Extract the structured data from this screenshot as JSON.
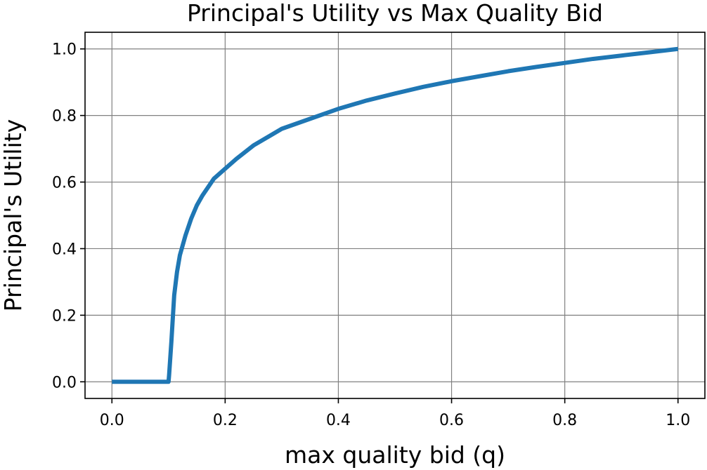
{
  "chart_data": {
    "type": "line",
    "title": "Principal's Utility vs Max Quality Bid",
    "xlabel": "max quality bid (q)",
    "ylabel": "Principal's Utility",
    "xlim": [
      -0.0475,
      1.0475
    ],
    "ylim": [
      -0.05,
      1.05
    ],
    "x_ticks": [
      0.0,
      0.2,
      0.4,
      0.6,
      0.8,
      1.0
    ],
    "x_tick_labels": [
      "0.0",
      "0.2",
      "0.4",
      "0.6",
      "0.8",
      "1.0"
    ],
    "y_ticks": [
      0.0,
      0.2,
      0.4,
      0.6,
      0.8,
      1.0
    ],
    "y_tick_labels": [
      "0.0",
      "0.2",
      "0.4",
      "0.6",
      "0.8",
      "1.0"
    ],
    "grid": true,
    "series": [
      {
        "color": "#1f77b4",
        "x": [
          0.0,
          0.02,
          0.04,
          0.06,
          0.08,
          0.1,
          0.101,
          0.105,
          0.11,
          0.115,
          0.12,
          0.13,
          0.14,
          0.15,
          0.16,
          0.18,
          0.2,
          0.22,
          0.25,
          0.28,
          0.3,
          0.35,
          0.4,
          0.45,
          0.5,
          0.55,
          0.6,
          0.65,
          0.7,
          0.75,
          0.8,
          0.85,
          0.9,
          0.95,
          1.0
        ],
        "y": [
          0.0,
          0.0,
          0.0,
          0.0,
          0.0,
          0.0,
          0.02,
          0.12,
          0.26,
          0.33,
          0.38,
          0.44,
          0.49,
          0.53,
          0.56,
          0.61,
          0.64,
          0.67,
          0.71,
          0.74,
          0.76,
          0.79,
          0.82,
          0.845,
          0.866,
          0.886,
          0.903,
          0.918,
          0.933,
          0.946,
          0.958,
          0.97,
          0.98,
          0.99,
          1.0
        ]
      }
    ]
  }
}
